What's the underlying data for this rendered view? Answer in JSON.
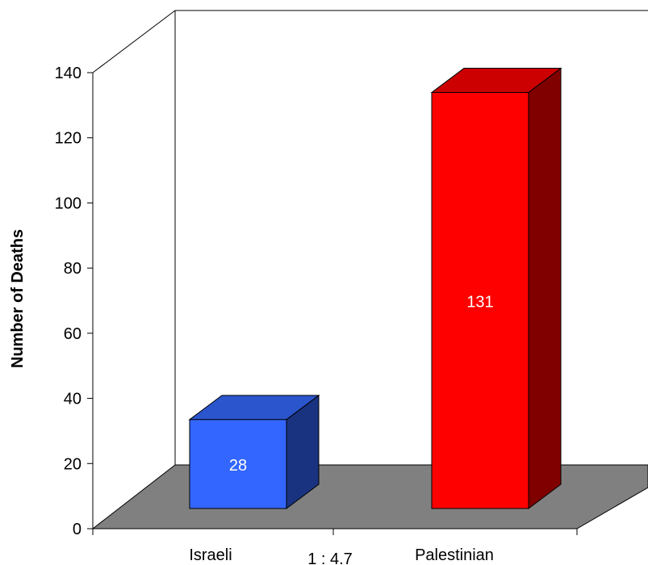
{
  "chart_data": {
    "type": "bar",
    "categories": [
      "Israeli",
      "Palestinian"
    ],
    "values": [
      28,
      131
    ],
    "data_labels": [
      "28",
      "131"
    ],
    "ylabel": "Number of Deaths",
    "ylim": [
      0,
      140
    ],
    "yticks": [
      "0",
      "20",
      "40",
      "60",
      "80",
      "100",
      "120",
      "140"
    ],
    "annotation": "1 : 4.7",
    "three_d": true,
    "colors": {
      "israeli_front": "#3366ff",
      "israeli_top": "#2b55cc",
      "israeli_side": "#1a3380",
      "palestinian_front": "#ff0000",
      "palestinian_top": "#cc0000",
      "palestinian_side": "#800000",
      "floor": "#808080"
    }
  }
}
